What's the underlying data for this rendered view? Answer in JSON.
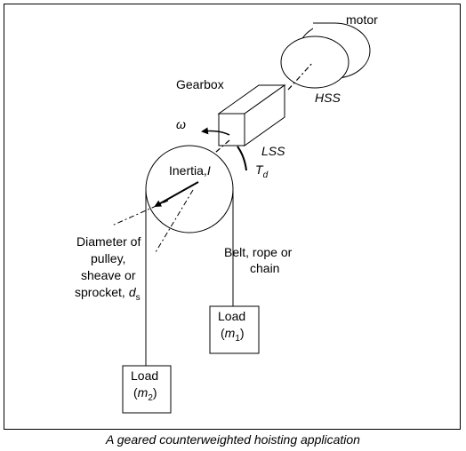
{
  "labels": {
    "motor": "motor",
    "hss": "HSS",
    "gearbox": "Gearbox",
    "omega": "ω",
    "lss": "LSS",
    "torque": "T",
    "torque_sub": "d",
    "inertia": "Inertia,",
    "inertia_sym": "I",
    "diameter_line1": "Diameter of",
    "diameter_line2": "pulley,",
    "diameter_line3": "sheave or",
    "diameter_line4": "sprocket,",
    "diameter_sym": "d",
    "diameter_sub": "s",
    "belt_line1": "Belt, rope or",
    "belt_line2": "chain",
    "load1_title": "Load",
    "load1_sym": "m",
    "load1_sub": "1",
    "load2_title": "Load",
    "load2_sym": "m",
    "load2_sub": "2"
  },
  "caption": "A geared counterweighted hoisting application"
}
